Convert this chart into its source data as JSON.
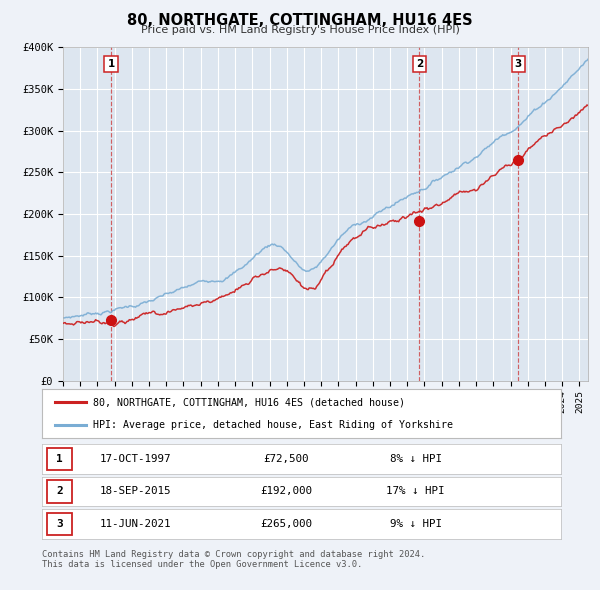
{
  "title": "80, NORTHGATE, COTTINGHAM, HU16 4ES",
  "subtitle": "Price paid vs. HM Land Registry's House Price Index (HPI)",
  "bg_color": "#eef2f8",
  "plot_bg_color": "#dde6f0",
  "grid_color": "#ffffff",
  "ylim": [
    0,
    400000
  ],
  "yticks": [
    0,
    50000,
    100000,
    150000,
    200000,
    250000,
    300000,
    350000,
    400000
  ],
  "ytick_labels": [
    "£0",
    "£50K",
    "£100K",
    "£150K",
    "£200K",
    "£250K",
    "£300K",
    "£350K",
    "£400K"
  ],
  "xlim_start": 1995.0,
  "xlim_end": 2025.5,
  "sale_dates": [
    1997.79,
    2015.71,
    2021.44
  ],
  "sale_prices": [
    72500,
    192000,
    265000
  ],
  "sale_labels": [
    "1",
    "2",
    "3"
  ],
  "vline_color": "#cc3333",
  "sale_marker_color": "#cc1111",
  "sale_marker_size": 7,
  "red_line_color": "#cc2222",
  "blue_line_color": "#7aadd4",
  "legend_label_red": "80, NORTHGATE, COTTINGHAM, HU16 4ES (detached house)",
  "legend_label_blue": "HPI: Average price, detached house, East Riding of Yorkshire",
  "table_rows": [
    [
      "1",
      "17-OCT-1997",
      "£72,500",
      "8% ↓ HPI"
    ],
    [
      "2",
      "18-SEP-2015",
      "£192,000",
      "17% ↓ HPI"
    ],
    [
      "3",
      "11-JUN-2021",
      "£265,000",
      "9% ↓ HPI"
    ]
  ],
  "footer_text": "Contains HM Land Registry data © Crown copyright and database right 2024.\nThis data is licensed under the Open Government Licence v3.0."
}
